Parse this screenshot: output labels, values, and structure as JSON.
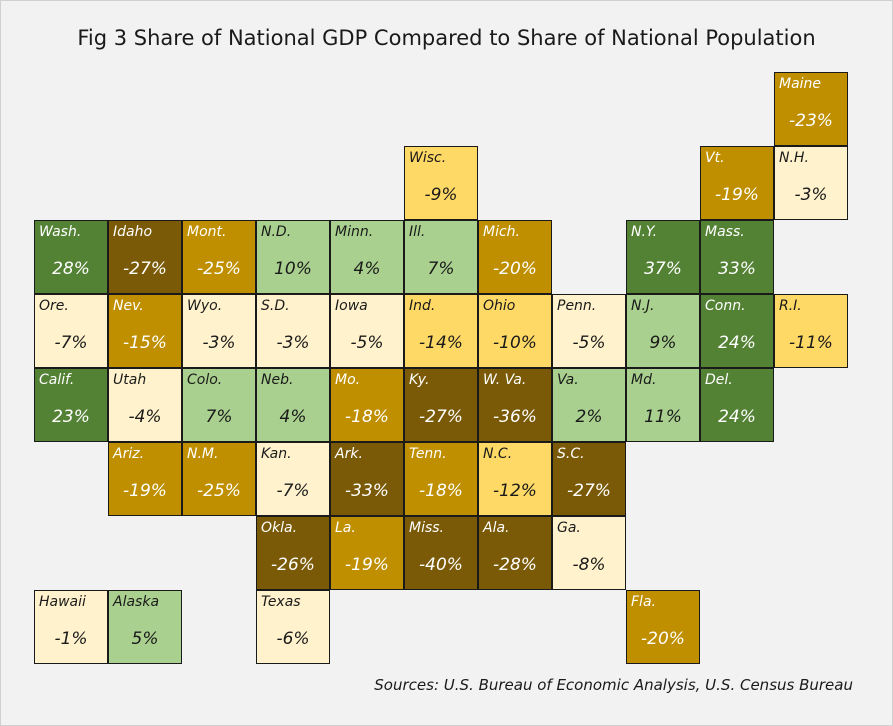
{
  "title": "Fig 3 Share of National GDP Compared to Share of National Population",
  "sources": "Sources: U.S. Bureau of Economic Analysis, U.S. Census Bureau",
  "chart_data": {
    "type": "heatmap",
    "title": "Fig 3 Share of National GDP Compared to Share of National Population",
    "color_scale": {
      "very_low": "#7a5a06",
      "low": "#bf8f00",
      "mid_low": "#ffd966",
      "neutral": "#fff2cc",
      "mid_high": "#a9d08e",
      "high": "#548235"
    },
    "tiles": [
      {
        "abbr": "Maine",
        "value": "-23%",
        "row": 0,
        "col": 10
      },
      {
        "abbr": "Wisc.",
        "value": "-9%",
        "row": 1,
        "col": 5
      },
      {
        "abbr": "Vt.",
        "value": "-19%",
        "row": 1,
        "col": 9
      },
      {
        "abbr": "N.H.",
        "value": "-3%",
        "row": 1,
        "col": 10
      },
      {
        "abbr": "Wash.",
        "value": "28%",
        "row": 2,
        "col": 0
      },
      {
        "abbr": "Idaho",
        "value": "-27%",
        "row": 2,
        "col": 1
      },
      {
        "abbr": "Mont.",
        "value": "-25%",
        "row": 2,
        "col": 2
      },
      {
        "abbr": "N.D.",
        "value": "10%",
        "row": 2,
        "col": 3
      },
      {
        "abbr": "Minn.",
        "value": "4%",
        "row": 2,
        "col": 4
      },
      {
        "abbr": "Ill.",
        "value": "7%",
        "row": 2,
        "col": 5
      },
      {
        "abbr": "Mich.",
        "value": "-20%",
        "row": 2,
        "col": 6
      },
      {
        "abbr": "N.Y.",
        "value": "37%",
        "row": 2,
        "col": 8
      },
      {
        "abbr": "Mass.",
        "value": "33%",
        "row": 2,
        "col": 9
      },
      {
        "abbr": "Ore.",
        "value": "-7%",
        "row": 3,
        "col": 0
      },
      {
        "abbr": "Nev.",
        "value": "-15%",
        "row": 3,
        "col": 1
      },
      {
        "abbr": "Wyo.",
        "value": "-3%",
        "row": 3,
        "col": 2
      },
      {
        "abbr": "S.D.",
        "value": "-3%",
        "row": 3,
        "col": 3
      },
      {
        "abbr": "Iowa",
        "value": "-5%",
        "row": 3,
        "col": 4
      },
      {
        "abbr": "Ind.",
        "value": "-14%",
        "row": 3,
        "col": 5
      },
      {
        "abbr": "Ohio",
        "value": "-10%",
        "row": 3,
        "col": 6
      },
      {
        "abbr": "Penn.",
        "value": "-5%",
        "row": 3,
        "col": 7
      },
      {
        "abbr": "N.J.",
        "value": "9%",
        "row": 3,
        "col": 8
      },
      {
        "abbr": "Conn.",
        "value": "24%",
        "row": 3,
        "col": 9
      },
      {
        "abbr": "R.I.",
        "value": "-11%",
        "row": 3,
        "col": 10
      },
      {
        "abbr": "Calif.",
        "value": "23%",
        "row": 4,
        "col": 0
      },
      {
        "abbr": "Utah",
        "value": "-4%",
        "row": 4,
        "col": 1
      },
      {
        "abbr": "Colo.",
        "value": "7%",
        "row": 4,
        "col": 2
      },
      {
        "abbr": "Neb.",
        "value": "4%",
        "row": 4,
        "col": 3
      },
      {
        "abbr": "Mo.",
        "value": "-18%",
        "row": 4,
        "col": 4
      },
      {
        "abbr": "Ky.",
        "value": "-27%",
        "row": 4,
        "col": 5
      },
      {
        "abbr": "W. Va.",
        "value": "-36%",
        "row": 4,
        "col": 6
      },
      {
        "abbr": "Va.",
        "value": "2%",
        "row": 4,
        "col": 7
      },
      {
        "abbr": "Md.",
        "value": "11%",
        "row": 4,
        "col": 8
      },
      {
        "abbr": "Del.",
        "value": "24%",
        "row": 4,
        "col": 9
      },
      {
        "abbr": "Ariz.",
        "value": "-19%",
        "row": 5,
        "col": 1
      },
      {
        "abbr": "N.M.",
        "value": "-25%",
        "row": 5,
        "col": 2
      },
      {
        "abbr": "Kan.",
        "value": "-7%",
        "row": 5,
        "col": 3
      },
      {
        "abbr": "Ark.",
        "value": "-33%",
        "row": 5,
        "col": 4
      },
      {
        "abbr": "Tenn.",
        "value": "-18%",
        "row": 5,
        "col": 5
      },
      {
        "abbr": "N.C.",
        "value": "-12%",
        "row": 5,
        "col": 6
      },
      {
        "abbr": "S.C.",
        "value": "-27%",
        "row": 5,
        "col": 7
      },
      {
        "abbr": "Okla.",
        "value": "-26%",
        "row": 6,
        "col": 3
      },
      {
        "abbr": "La.",
        "value": "-19%",
        "row": 6,
        "col": 4
      },
      {
        "abbr": "Miss.",
        "value": "-40%",
        "row": 6,
        "col": 5
      },
      {
        "abbr": "Ala.",
        "value": "-28%",
        "row": 6,
        "col": 6
      },
      {
        "abbr": "Ga.",
        "value": "-8%",
        "row": 6,
        "col": 7
      },
      {
        "abbr": "Hawaii",
        "value": "-1%",
        "row": 7,
        "col": 0
      },
      {
        "abbr": "Alaska",
        "value": "5%",
        "row": 7,
        "col": 1
      },
      {
        "abbr": "Texas",
        "value": "-6%",
        "row": 7,
        "col": 3
      },
      {
        "abbr": "Fla.",
        "value": "-20%",
        "row": 7,
        "col": 8
      }
    ]
  }
}
